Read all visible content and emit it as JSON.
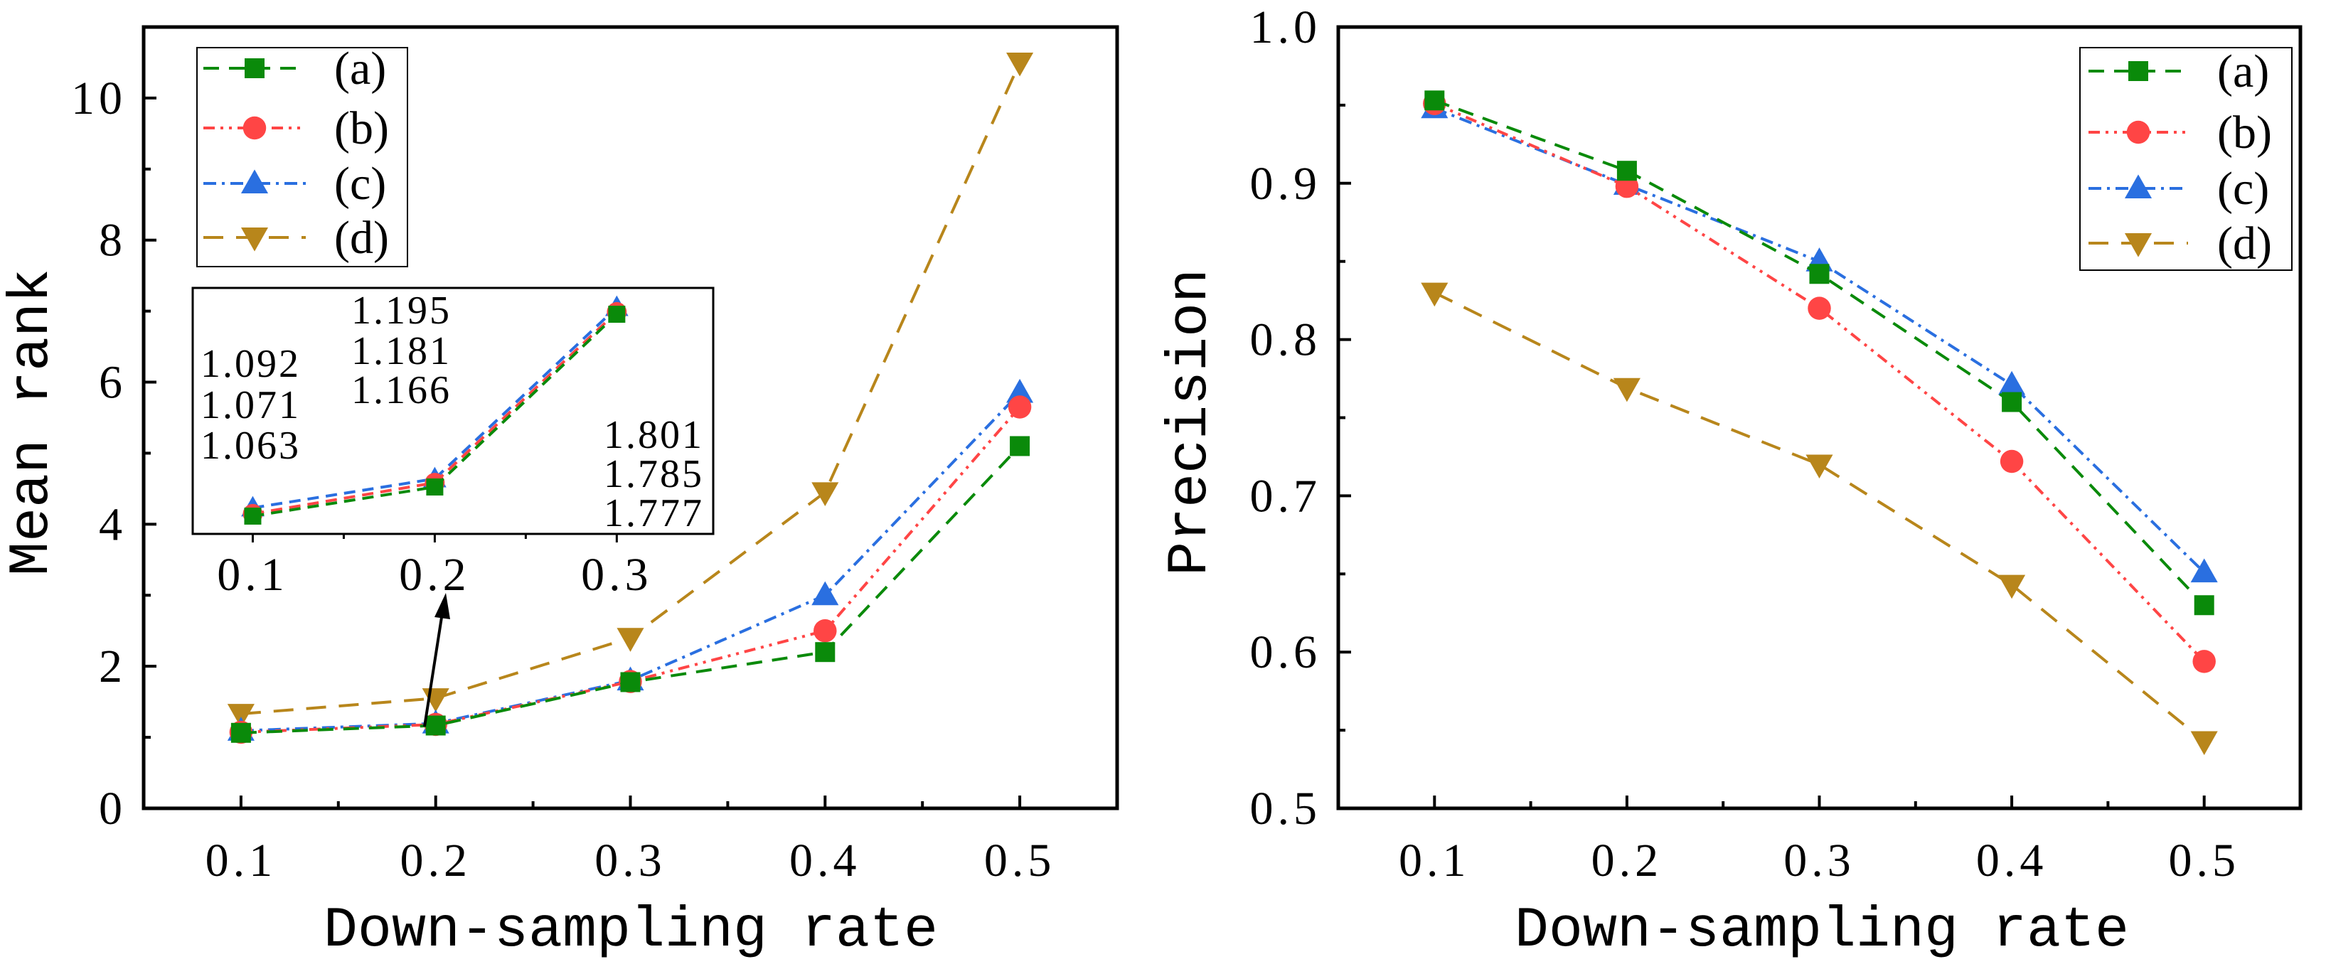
{
  "chart_data": [
    {
      "type": "line",
      "title": "",
      "xlabel": "Down-sampling rate",
      "ylabel": "Mean rank",
      "x": [
        0.1,
        0.2,
        0.3,
        0.4,
        0.5
      ],
      "x_tick_labels": [
        "0.1",
        "0.2",
        "0.3",
        "0.4",
        "0.5"
      ],
      "xlim": [
        0.05,
        0.55
      ],
      "ylim": [
        0,
        11
      ],
      "y_ticks": [
        0,
        2,
        4,
        6,
        8,
        10
      ],
      "y_tick_labels": [
        "0",
        "2",
        "4",
        "6",
        "8",
        "10"
      ],
      "grid": false,
      "legend": "top-left",
      "series": [
        {
          "name": "(a)",
          "color": "#0a8a0a",
          "marker": "square",
          "dash": "22,14",
          "values": [
            1.063,
            1.166,
            1.777,
            2.2,
            5.1
          ]
        },
        {
          "name": "(b)",
          "color": "#ff4545",
          "marker": "circle",
          "dash": "16,8,4,8,4,8",
          "values": [
            1.071,
            1.181,
            1.785,
            2.5,
            5.65
          ]
        },
        {
          "name": "(c)",
          "color": "#2a6fe0",
          "marker": "triangle-up",
          "dash": "18,8,4,8",
          "values": [
            1.092,
            1.195,
            1.801,
            3.0,
            5.85
          ]
        },
        {
          "name": "(d)",
          "color": "#b8861b",
          "marker": "triangle-down",
          "dash": "28,18",
          "values": [
            1.33,
            1.55,
            2.4,
            4.45,
            10.5
          ]
        }
      ],
      "inset": {
        "x": [
          0.1,
          0.2,
          0.3
        ],
        "x_tick_labels": [
          "0.1",
          "0.2",
          "0.3"
        ],
        "xlim": [
          0.067,
          0.353
        ],
        "ylim": [
          1.0,
          1.87
        ],
        "series": [
          {
            "name": "(a)",
            "values": [
              1.063,
              1.166,
              1.777
            ]
          },
          {
            "name": "(b)",
            "values": [
              1.071,
              1.181,
              1.785
            ]
          },
          {
            "name": "(c)",
            "values": [
              1.092,
              1.195,
              1.801
            ]
          }
        ],
        "annotations": [
          [
            "1.092",
            "1.071",
            "1.063"
          ],
          [
            "1.195",
            "1.181",
            "1.166"
          ],
          [
            "1.801",
            "1.785",
            "1.777"
          ]
        ]
      }
    },
    {
      "type": "line",
      "title": "",
      "xlabel": "Down-sampling rate",
      "ylabel": "Precision",
      "x": [
        0.1,
        0.2,
        0.3,
        0.4,
        0.5
      ],
      "x_tick_labels": [
        "0.1",
        "0.2",
        "0.3",
        "0.4",
        "0.5"
      ],
      "xlim": [
        0.05,
        0.55
      ],
      "ylim": [
        0.5,
        1.0
      ],
      "y_ticks": [
        0.5,
        0.6,
        0.7,
        0.8,
        0.9,
        1.0
      ],
      "y_tick_labels": [
        "0.5",
        "0.6",
        "0.7",
        "0.8",
        "0.9",
        "1.0"
      ],
      "grid": false,
      "legend": "top-right",
      "series": [
        {
          "name": "(a)",
          "color": "#0a8a0a",
          "marker": "square",
          "dash": "22,14",
          "values": [
            0.953,
            0.908,
            0.842,
            0.76,
            0.63
          ]
        },
        {
          "name": "(b)",
          "color": "#ff4545",
          "marker": "circle",
          "dash": "16,8,4,8,4,8",
          "values": [
            0.951,
            0.898,
            0.82,
            0.722,
            0.594
          ]
        },
        {
          "name": "(c)",
          "color": "#2a6fe0",
          "marker": "triangle-up",
          "dash": "18,8,4,8",
          "values": [
            0.948,
            0.899,
            0.85,
            0.771,
            0.651
          ]
        },
        {
          "name": "(d)",
          "color": "#b8861b",
          "marker": "triangle-down",
          "dash": "28,18",
          "values": [
            0.83,
            0.769,
            0.72,
            0.643,
            0.543
          ]
        }
      ]
    }
  ]
}
